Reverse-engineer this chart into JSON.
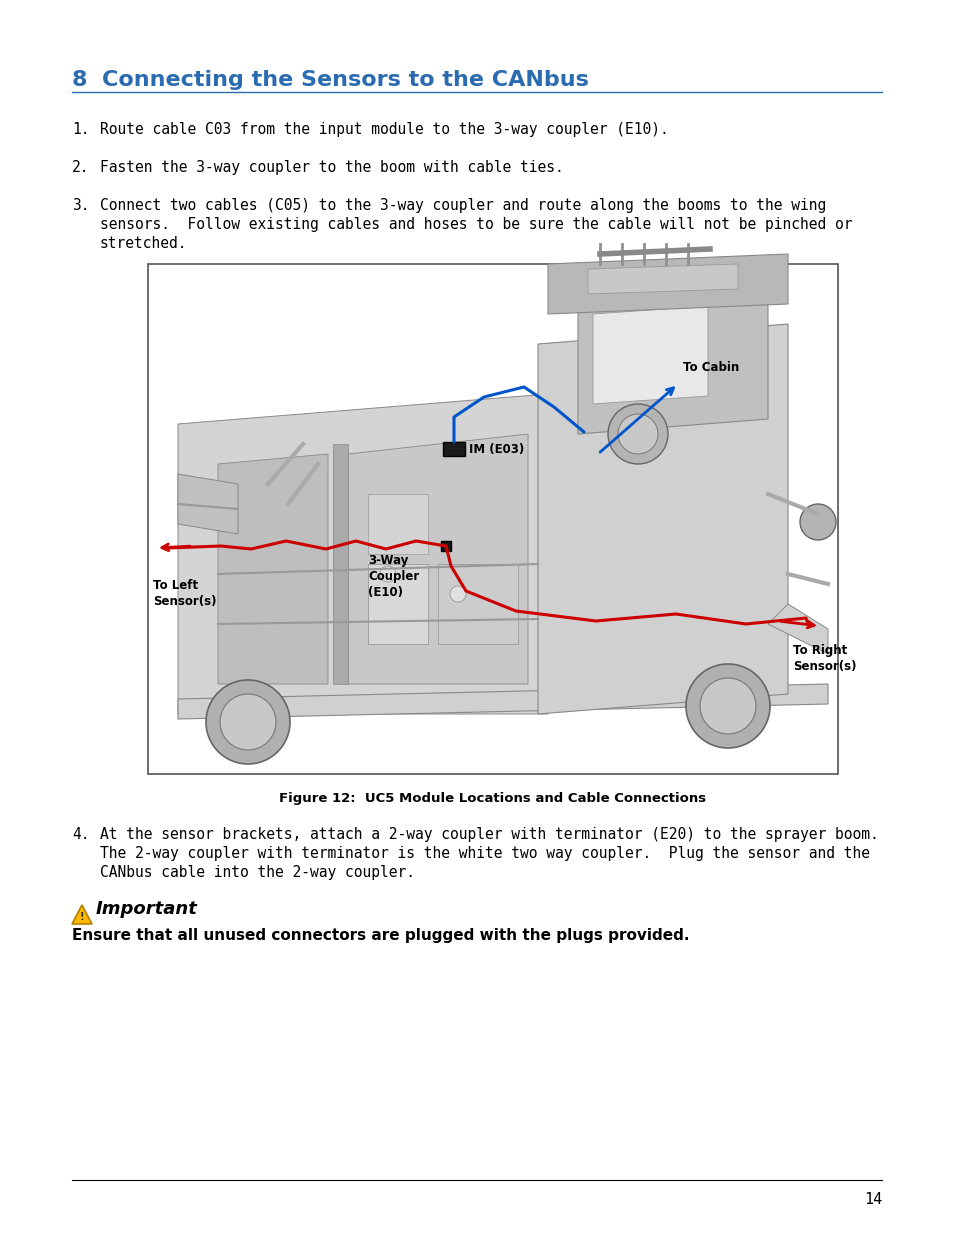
{
  "page_bg": "#ffffff",
  "title_number": "8",
  "title_color": "#2B6CB0",
  "title_fontsize": 16,
  "body_fontsize": 10.5,
  "body_color": "#000000",
  "caption_fontsize": 9.5,
  "figure_caption": "Figure 12:  UC5 Module Locations and Cable Connections",
  "important_title": "Important",
  "important_text": "Ensure that all unused connectors are plugged with the plugs provided.",
  "page_number": "14",
  "line1": "Route cable C03 from the input module to the 3-way coupler (E10).",
  "line2": "Fasten the 3-way coupler to the boom with cable ties.",
  "line3a": "Connect two cables (C05) to the 3-way coupler and route along the booms to the wing",
  "line3b": "sensors.  Follow existing cables and hoses to be sure the cable will not be pinched or",
  "line3c": "stretched.",
  "line4a": "At the sensor brackets, attach a 2-way coupler with terminator (E20) to the sprayer boom.",
  "line4b": "The 2-way coupler with terminator is the white two way coupler.  Plug the sensor and the",
  "line4c": "CANbus cable into the 2-way coupler.",
  "blue_color": "#0055cc",
  "red_color": "#cc0000",
  "gray_light": "#c8c8c8",
  "gray_med": "#a0a0a0",
  "gray_dark": "#707070",
  "diagram_border": "#555555",
  "warning_yellow": "#FFB800",
  "title_underline": "#2B6CB0"
}
